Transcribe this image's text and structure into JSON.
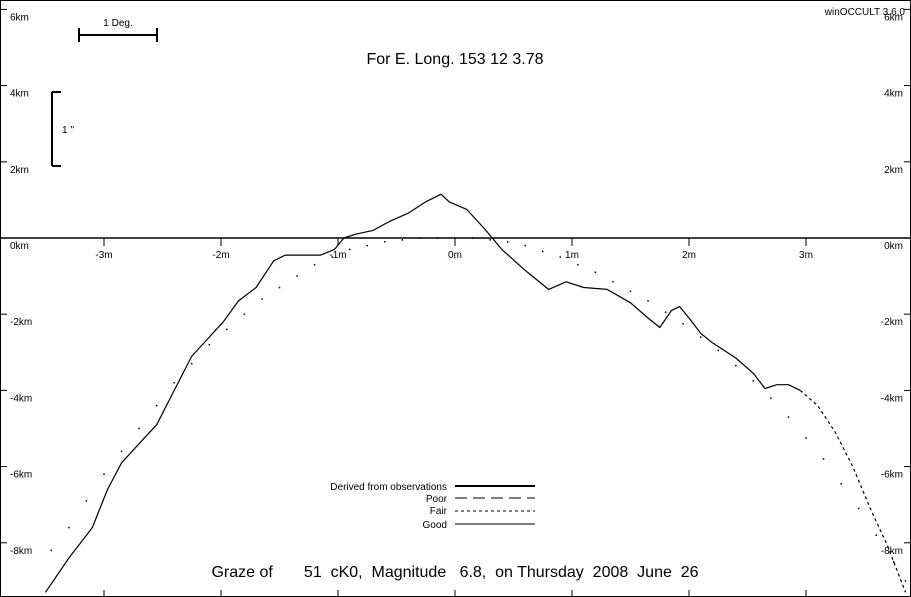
{
  "app_version": "winOCCULT 3.6.0",
  "header": "For E. Long.  153 12  3.78",
  "footer": "Graze of       51  cK0,  Magnitude   6.8,  on Thursday  2008  June  26",
  "scale_bars": {
    "degree": "1 Deg.",
    "arcsec": "1 ''"
  },
  "legend": {
    "derived": "Derived from observations",
    "poor": "Poor",
    "fair": "Fair",
    "good": "Good"
  },
  "chart_data": {
    "type": "line",
    "xlabel": "",
    "ylabel": "",
    "xlim": [
      -3.9,
      3.9
    ],
    "ylim": [
      -9.3,
      6.2
    ],
    "x_ticks": [
      {
        "v": -3,
        "t": "-3m"
      },
      {
        "v": -2,
        "t": "-2m"
      },
      {
        "v": -1,
        "t": "-1m"
      },
      {
        "v": 0,
        "t": "0m"
      },
      {
        "v": 1,
        "t": "1m"
      },
      {
        "v": 2,
        "t": "2m"
      },
      {
        "v": 3,
        "t": "3m"
      }
    ],
    "y_ticks": [
      {
        "v": 6,
        "t": "6km"
      },
      {
        "v": 4,
        "t": "4km"
      },
      {
        "v": 2,
        "t": "2km"
      },
      {
        "v": 0,
        "t": "0km"
      },
      {
        "v": -2,
        "t": "-2km"
      },
      {
        "v": -4,
        "t": "-4km"
      },
      {
        "v": -6,
        "t": "-6km"
      },
      {
        "v": -8,
        "t": "-8km"
      }
    ],
    "series": [
      {
        "style": "solid",
        "x": [
          -3.5,
          -3.3,
          -3.1,
          -2.97,
          -2.85,
          -2.7,
          -2.55,
          -2.4,
          -2.25,
          -2.1,
          -1.98,
          -1.85,
          -1.7,
          -1.55,
          -1.45,
          -1.3,
          -1.15,
          -1.03,
          -0.95,
          -0.85,
          -0.7,
          -0.55,
          -0.4,
          -0.25,
          -0.12,
          -0.05,
          0.1,
          0.25,
          0.4,
          0.6,
          0.8,
          0.95,
          1.1,
          1.3,
          1.5,
          1.65,
          1.75,
          1.85,
          1.92,
          2.0,
          2.1,
          2.2,
          2.4,
          2.55,
          2.65,
          2.75,
          2.85,
          2.95
        ],
        "y": [
          -9.3,
          -8.4,
          -7.6,
          -6.6,
          -5.9,
          -5.4,
          -4.9,
          -4.0,
          -3.1,
          -2.6,
          -2.2,
          -1.65,
          -1.3,
          -0.6,
          -0.45,
          -0.45,
          -0.45,
          -0.3,
          0.0,
          0.1,
          0.2,
          0.45,
          0.65,
          0.95,
          1.15,
          0.95,
          0.75,
          0.25,
          -0.3,
          -0.85,
          -1.35,
          -1.15,
          -1.3,
          -1.35,
          -1.7,
          -2.1,
          -2.35,
          -1.9,
          -1.8,
          -2.1,
          -2.5,
          -2.75,
          -3.15,
          -3.55,
          -3.95,
          -3.85,
          -3.85,
          -4.0
        ]
      },
      {
        "style": "fair",
        "x": [
          2.95,
          3.1,
          3.25,
          3.4,
          3.55,
          3.7,
          3.85
        ],
        "y": [
          -4.0,
          -4.4,
          -5.1,
          -6.0,
          -7.1,
          -8.1,
          -9.3
        ]
      },
      {
        "style": "dotted",
        "x": [
          -3.45,
          -3.3,
          -3.15,
          -3.0,
          -2.85,
          -2.7,
          -2.55,
          -2.4,
          -2.25,
          -2.1,
          -1.95,
          -1.8,
          -1.65,
          -1.5,
          -1.35,
          -1.2,
          -1.05,
          -0.9,
          -0.75,
          -0.6,
          -0.45,
          -0.3,
          -0.15,
          0.0,
          0.15,
          0.3,
          0.45,
          0.6,
          0.75,
          0.9,
          1.05,
          1.2,
          1.35,
          1.5,
          1.65,
          1.8,
          1.95,
          2.1,
          2.25,
          2.4,
          2.55,
          2.7,
          2.85,
          3.0,
          3.15,
          3.3,
          3.45,
          3.6,
          3.75,
          3.85
        ],
        "y": [
          -8.2,
          -7.6,
          -6.9,
          -6.2,
          -5.6,
          -5.0,
          -4.4,
          -3.8,
          -3.3,
          -2.8,
          -2.4,
          -2.0,
          -1.6,
          -1.3,
          -1.0,
          -0.7,
          -0.5,
          -0.3,
          -0.2,
          -0.1,
          -0.05,
          0.0,
          0.0,
          0.0,
          0.0,
          -0.05,
          -0.1,
          -0.2,
          -0.35,
          -0.5,
          -0.7,
          -0.9,
          -1.15,
          -1.4,
          -1.65,
          -1.95,
          -2.25,
          -2.6,
          -2.95,
          -3.35,
          -3.75,
          -4.2,
          -4.7,
          -5.25,
          -5.8,
          -6.45,
          -7.1,
          -7.8,
          -8.5,
          -9.0
        ]
      }
    ]
  }
}
